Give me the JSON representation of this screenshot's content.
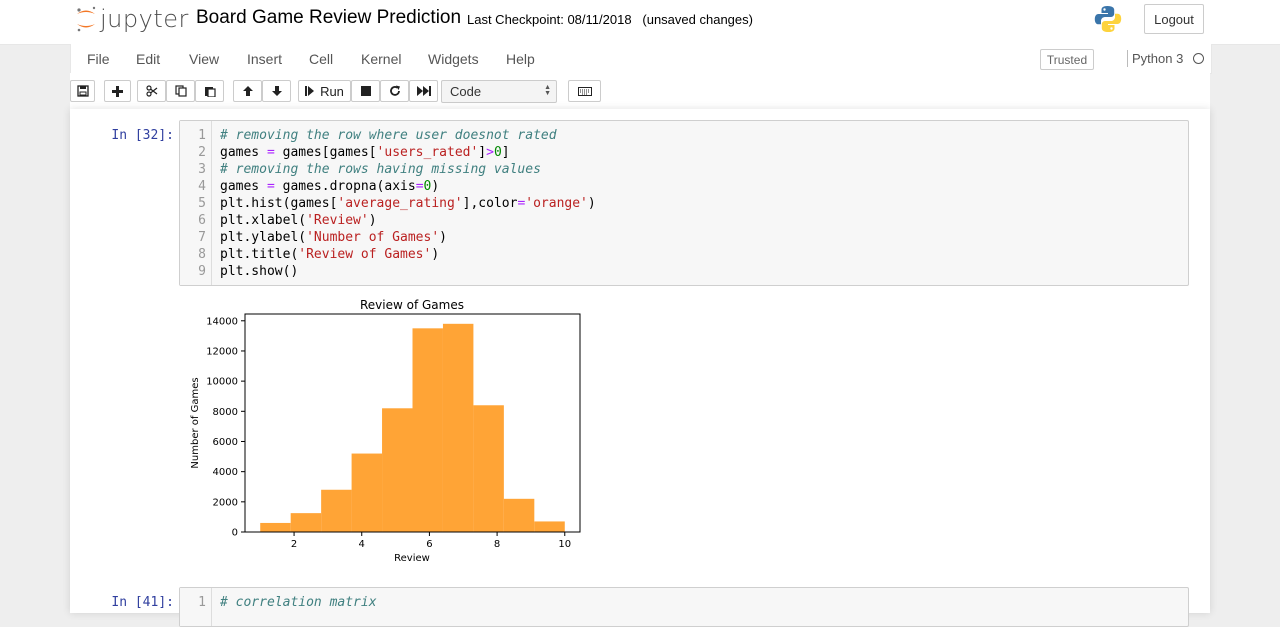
{
  "header": {
    "logo_text": "jupyter",
    "notebook_title": "Board Game Review Prediction",
    "checkpoint": "Last Checkpoint: 08/11/2018",
    "unsaved": "(unsaved changes)",
    "logout_label": "Logout"
  },
  "menubar": {
    "items": [
      "File",
      "Edit",
      "View",
      "Insert",
      "Cell",
      "Kernel",
      "Widgets",
      "Help"
    ],
    "trusted_label": "Trusted",
    "kernel_name": "Python 3"
  },
  "toolbar": {
    "run_label": "Run",
    "cell_type": "Code"
  },
  "cells": [
    {
      "prompt": "In [32]:",
      "lines": [
        "# removing the row where user doesnot rated",
        "games = games[games['users_rated']>0]",
        "# removing the rows having missing values",
        "games = games.dropna(axis=0)",
        "plt.hist(games['average_rating'],color='orange')",
        "plt.xlabel('Review')",
        "plt.ylabel('Number of Games')",
        "plt.title('Review of Games')",
        "plt.show()"
      ]
    },
    {
      "prompt": "In [41]:",
      "lines": [
        "# correlation matrix"
      ]
    }
  ],
  "chart_data": {
    "type": "bar",
    "title": "Review of Games",
    "xlabel": "Review",
    "ylabel": "Number of Games",
    "color": "#ffa436",
    "bin_edges": [
      1.0,
      1.9,
      2.8,
      3.7,
      4.6,
      5.5,
      6.4,
      7.3,
      8.2,
      9.1,
      10.0
    ],
    "values": [
      600,
      1250,
      2800,
      5200,
      8200,
      13500,
      13800,
      8400,
      2200,
      700
    ],
    "xlim": [
      0.55,
      10.45
    ],
    "ylim": [
      0,
      14450
    ],
    "xticks": [
      2,
      4,
      6,
      8,
      10
    ],
    "yticks": [
      0,
      2000,
      4000,
      6000,
      8000,
      10000,
      12000,
      14000
    ],
    "grid": false
  }
}
